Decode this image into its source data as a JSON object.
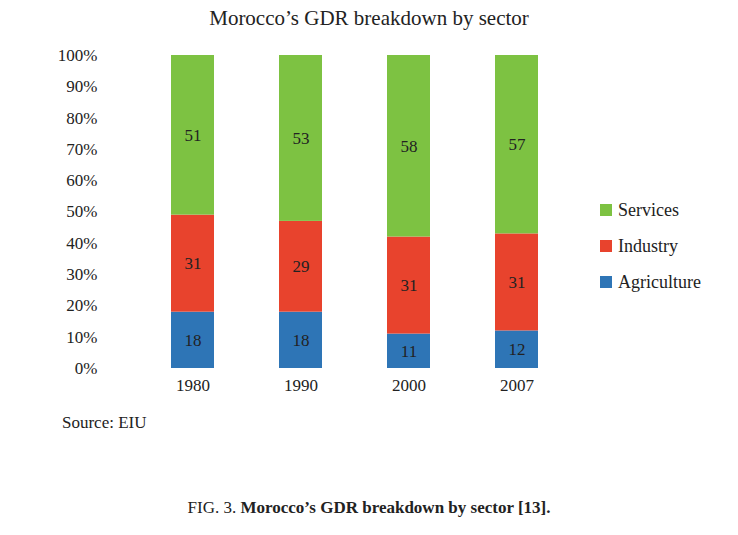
{
  "chart_data": {
    "type": "bar",
    "title": "Morocco’s GDR breakdown by sector",
    "categories": [
      "1980",
      "1990",
      "2000",
      "2007"
    ],
    "series": [
      {
        "name": "Agriculture",
        "color": "#2e75b6",
        "values": [
          18,
          18,
          11,
          12
        ]
      },
      {
        "name": "Industry",
        "color": "#e8432d",
        "values": [
          31,
          29,
          31,
          31
        ]
      },
      {
        "name": "Services",
        "color": "#7dc242",
        "values": [
          51,
          53,
          58,
          57
        ]
      }
    ],
    "stacked": true,
    "data_labels": true,
    "legend": "right",
    "grid": false,
    "ylim": [
      0,
      100
    ],
    "yticks": [
      {
        "value": 0,
        "label": "0%"
      },
      {
        "value": 10,
        "label": "10%"
      },
      {
        "value": 20,
        "label": "20%"
      },
      {
        "value": 30,
        "label": "30%"
      },
      {
        "value": 40,
        "label": "40%"
      },
      {
        "value": 50,
        "label": "50%"
      },
      {
        "value": 60,
        "label": "60%"
      },
      {
        "value": 70,
        "label": "70%"
      },
      {
        "value": 80,
        "label": "80%"
      },
      {
        "value": 90,
        "label": "90%"
      },
      {
        "value": 100,
        "label": "100%"
      }
    ],
    "source": "Source: EIU",
    "caption_label": "FIG. 3.",
    "caption": "Morocco’s GDR breakdown by sector [13]."
  }
}
